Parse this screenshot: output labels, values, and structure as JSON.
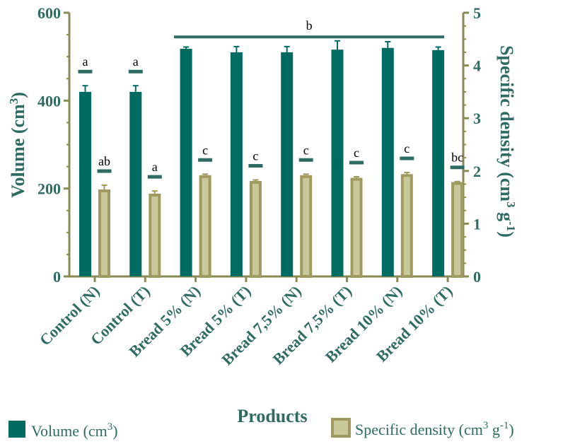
{
  "chart_data": {
    "type": "bar",
    "xlabel": "Products",
    "ylabel_left": "Volume (cm",
    "ylabel_left_sup": "3",
    "ylabel_left_end": ")",
    "ylabel_right": "Specific density (cm",
    "ylabel_right_sup": "3",
    "ylabel_right_mid": " g",
    "ylabel_right_sup2": "-1",
    "ylabel_right_end": ")",
    "ylim_left": [
      0,
      600
    ],
    "ylim_right": [
      0,
      5
    ],
    "yticks_left": [
      "0",
      "200",
      "400",
      "600"
    ],
    "yticks_right": [
      "0",
      "1",
      "2",
      "3",
      "4",
      "5"
    ],
    "categories": [
      "Control (N)",
      "Control (T)",
      "Bread 5% (N)",
      "Bread 5% (T)",
      "Bread 7,5% (N)",
      "Bread 7,5% (T)",
      "Bread 10% (N)",
      "Bread 10% (T)"
    ],
    "series": [
      {
        "name": "Volume (cm",
        "name_sup": "3",
        "name_end": ")",
        "axis": "left",
        "color": "#006b61",
        "values": [
          420,
          420,
          518,
          510,
          510,
          516,
          520,
          515
        ],
        "errors": [
          14,
          14,
          4,
          13,
          13,
          20,
          14,
          7
        ],
        "letters": [
          "a",
          "a",
          "",
          "",
          "",
          "",
          "",
          ""
        ]
      },
      {
        "name": "Specific density (cm",
        "name_sup": "3",
        "name_mid": " g",
        "name_sup2": "-1",
        "name_end": ")",
        "axis": "right",
        "color": "#c9c89a",
        "edge": "#a09a60",
        "values": [
          1.65,
          1.57,
          1.92,
          1.81,
          1.92,
          1.87,
          1.94,
          1.79
        ],
        "errors": [
          0.08,
          0.05,
          0.02,
          0.02,
          0.02,
          0.02,
          0.03,
          0.01
        ],
        "letters": [
          "ab",
          "a",
          "c",
          "c",
          "c",
          "c",
          "c",
          "bc"
        ]
      }
    ],
    "group_annotation": {
      "text": "b",
      "from_category": 2,
      "to_category": 7,
      "axis": "left",
      "level": 545
    }
  }
}
